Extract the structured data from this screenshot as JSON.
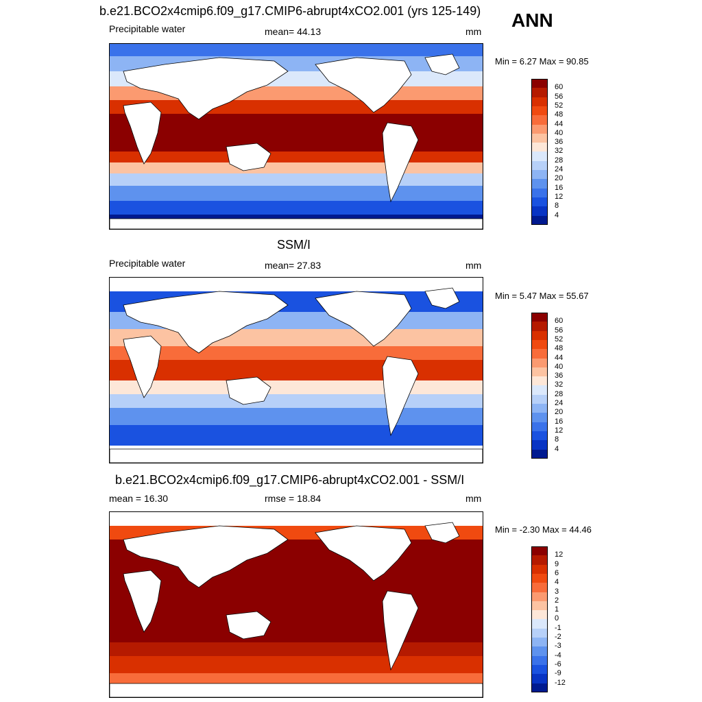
{
  "header": {
    "title": "b.e21.BCO2x4cmip6.f09_g17.CMIP6-abrupt4xCO2.001 (yrs 125-149)",
    "season": "ANN"
  },
  "panels": [
    {
      "id": "model",
      "left_label": "Precipitable water",
      "center_label": "mean=  44.13",
      "units": "mm",
      "minmax": "Min =   6.27 Max =  90.85",
      "colorbar": {
        "labels": [
          "60",
          "56",
          "52",
          "48",
          "44",
          "40",
          "36",
          "32",
          "28",
          "24",
          "20",
          "16",
          "12",
          "8",
          "4"
        ],
        "colors": [
          "#8b0000",
          "#b51a00",
          "#d93000",
          "#f04a10",
          "#f86c3a",
          "#fb9a70",
          "#fcc3a2",
          "#fde7d8",
          "#dbe8fb",
          "#b7d0f8",
          "#8db4f4",
          "#5e92ee",
          "#3a72ea",
          "#1a52e0",
          "#0834c4",
          "#001a90"
        ]
      }
    },
    {
      "id": "obs",
      "title": "SSM/I",
      "left_label": "Precipitable water",
      "center_label": "mean=  27.83",
      "units": "mm",
      "minmax": "Min =   5.47 Max =  55.67",
      "colorbar": {
        "labels": [
          "60",
          "56",
          "52",
          "48",
          "44",
          "40",
          "36",
          "32",
          "28",
          "24",
          "20",
          "16",
          "12",
          "8",
          "4"
        ],
        "colors": [
          "#8b0000",
          "#b51a00",
          "#d93000",
          "#f04a10",
          "#f86c3a",
          "#fb9a70",
          "#fcc3a2",
          "#fde7d8",
          "#dbe8fb",
          "#b7d0f8",
          "#8db4f4",
          "#5e92ee",
          "#3a72ea",
          "#1a52e0",
          "#0834c4",
          "#001a90"
        ]
      }
    },
    {
      "id": "diff",
      "title": "b.e21.BCO2x4cmip6.f09_g17.CMIP6-abrupt4xCO2.001 - SSM/I",
      "left_label": "mean =  16.30",
      "center_label": "rmse =  18.84",
      "units": "mm",
      "minmax": "Min =  -2.30 Max =  44.46",
      "colorbar": {
        "labels": [
          "12",
          "9",
          "6",
          "4",
          "3",
          "2",
          "1",
          "0",
          "-1",
          "-2",
          "-3",
          "-4",
          "-6",
          "-9",
          "-12"
        ],
        "colors": [
          "#8b0000",
          "#b51a00",
          "#d93000",
          "#f04a10",
          "#f86c3a",
          "#fb9a70",
          "#fcc3a2",
          "#fde7d8",
          "#dbe8fb",
          "#b7d0f8",
          "#8db4f4",
          "#5e92ee",
          "#3a72ea",
          "#1a52e0",
          "#0834c4",
          "#001a90"
        ]
      }
    }
  ],
  "map_style": {
    "deep_red": "#8b0000",
    "red": "#d93000",
    "orange": "#f86c3a",
    "light": "#fcc3a2",
    "light_blue": "#b7d0f8",
    "mid_blue": "#5e92ee",
    "blue": "#1a52e0",
    "land": "#ffffff",
    "coast": "#000000"
  }
}
